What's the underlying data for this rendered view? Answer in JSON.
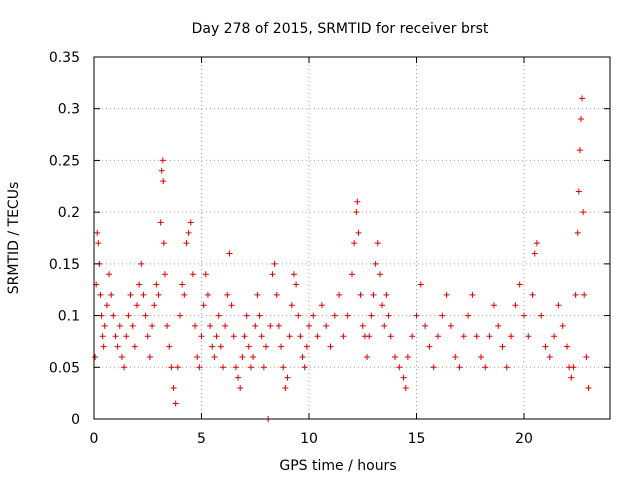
{
  "chart_data": {
    "type": "scatter",
    "title": "Day 278 of 2015, SRMTID for receiver brst",
    "xlabel": "GPS time / hours",
    "ylabel": "SRMTID / TECUs",
    "xlim": [
      0,
      24
    ],
    "ylim": [
      0,
      0.35
    ],
    "x_ticks": [
      0,
      5,
      10,
      15,
      20
    ],
    "x_tick_labels": [
      "0",
      "5",
      "10",
      "15",
      "20"
    ],
    "y_ticks": [
      0,
      0.05,
      0.1,
      0.15,
      0.2,
      0.25,
      0.3,
      0.35
    ],
    "y_tick_labels": [
      "0",
      "0.05",
      "0.1",
      "0.15",
      "0.2",
      "0.25",
      "0.3",
      "0.35"
    ],
    "grid": true,
    "series": [
      {
        "name": "SRMTID",
        "color": "#e00000",
        "marker": "plus",
        "points": [
          [
            0.05,
            0.06
          ],
          [
            0.1,
            0.13
          ],
          [
            0.15,
            0.18
          ],
          [
            0.2,
            0.17
          ],
          [
            0.25,
            0.15
          ],
          [
            0.3,
            0.12
          ],
          [
            0.35,
            0.1
          ],
          [
            0.4,
            0.08
          ],
          [
            0.45,
            0.07
          ],
          [
            0.5,
            0.09
          ],
          [
            0.6,
            0.11
          ],
          [
            0.7,
            0.14
          ],
          [
            0.8,
            0.12
          ],
          [
            0.9,
            0.1
          ],
          [
            1.0,
            0.08
          ],
          [
            1.1,
            0.07
          ],
          [
            1.2,
            0.09
          ],
          [
            1.3,
            0.06
          ],
          [
            1.4,
            0.05
          ],
          [
            1.5,
            0.08
          ],
          [
            1.6,
            0.1
          ],
          [
            1.7,
            0.12
          ],
          [
            1.8,
            0.09
          ],
          [
            1.9,
            0.07
          ],
          [
            2.0,
            0.11
          ],
          [
            2.1,
            0.13
          ],
          [
            2.2,
            0.15
          ],
          [
            2.3,
            0.12
          ],
          [
            2.4,
            0.1
          ],
          [
            2.5,
            0.08
          ],
          [
            2.6,
            0.06
          ],
          [
            2.7,
            0.09
          ],
          [
            2.8,
            0.11
          ],
          [
            2.9,
            0.13
          ],
          [
            3.0,
            0.12
          ],
          [
            3.1,
            0.19
          ],
          [
            3.15,
            0.24
          ],
          [
            3.2,
            0.25
          ],
          [
            3.22,
            0.23
          ],
          [
            3.25,
            0.17
          ],
          [
            3.3,
            0.14
          ],
          [
            3.4,
            0.09
          ],
          [
            3.5,
            0.07
          ],
          [
            3.6,
            0.05
          ],
          [
            3.7,
            0.03
          ],
          [
            3.8,
            0.015
          ],
          [
            3.9,
            0.05
          ],
          [
            4.0,
            0.1
          ],
          [
            4.1,
            0.13
          ],
          [
            4.2,
            0.12
          ],
          [
            4.3,
            0.17
          ],
          [
            4.4,
            0.18
          ],
          [
            4.5,
            0.19
          ],
          [
            4.6,
            0.14
          ],
          [
            4.7,
            0.09
          ],
          [
            4.8,
            0.06
          ],
          [
            4.9,
            0.05
          ],
          [
            5.0,
            0.08
          ],
          [
            5.1,
            0.11
          ],
          [
            5.2,
            0.14
          ],
          [
            5.3,
            0.12
          ],
          [
            5.4,
            0.09
          ],
          [
            5.5,
            0.07
          ],
          [
            5.6,
            0.06
          ],
          [
            5.7,
            0.08
          ],
          [
            5.8,
            0.1
          ],
          [
            5.9,
            0.07
          ],
          [
            6.0,
            0.05
          ],
          [
            6.1,
            0.09
          ],
          [
            6.2,
            0.12
          ],
          [
            6.3,
            0.16
          ],
          [
            6.4,
            0.11
          ],
          [
            6.5,
            0.08
          ],
          [
            6.6,
            0.05
          ],
          [
            6.7,
            0.04
          ],
          [
            6.8,
            0.03
          ],
          [
            6.9,
            0.06
          ],
          [
            7.0,
            0.08
          ],
          [
            7.1,
            0.1
          ],
          [
            7.2,
            0.07
          ],
          [
            7.3,
            0.05
          ],
          [
            7.4,
            0.06
          ],
          [
            7.5,
            0.09
          ],
          [
            7.6,
            0.12
          ],
          [
            7.7,
            0.1
          ],
          [
            7.8,
            0.08
          ],
          [
            7.9,
            0.05
          ],
          [
            8.0,
            0.07
          ],
          [
            8.2,
            0.09
          ],
          [
            8.3,
            0.14
          ],
          [
            8.4,
            0.15
          ],
          [
            8.5,
            0.12
          ],
          [
            8.6,
            0.09
          ],
          [
            8.7,
            0.07
          ],
          [
            8.8,
            0.05
          ],
          [
            8.9,
            0.03
          ],
          [
            9.0,
            0.04
          ],
          [
            9.1,
            0.08
          ],
          [
            9.2,
            0.11
          ],
          [
            9.3,
            0.14
          ],
          [
            9.4,
            0.13
          ],
          [
            9.5,
            0.1
          ],
          [
            9.6,
            0.08
          ],
          [
            9.7,
            0.06
          ],
          [
            9.8,
            0.05
          ],
          [
            9.9,
            0.07
          ],
          [
            10.0,
            0.09
          ],
          [
            10.2,
            0.1
          ],
          [
            10.4,
            0.08
          ],
          [
            10.6,
            0.11
          ],
          [
            10.8,
            0.09
          ],
          [
            11.0,
            0.07
          ],
          [
            11.2,
            0.1
          ],
          [
            11.4,
            0.12
          ],
          [
            11.6,
            0.08
          ],
          [
            11.8,
            0.1
          ],
          [
            12.0,
            0.14
          ],
          [
            12.1,
            0.17
          ],
          [
            12.2,
            0.2
          ],
          [
            12.25,
            0.21
          ],
          [
            12.3,
            0.18
          ],
          [
            12.4,
            0.12
          ],
          [
            12.5,
            0.09
          ],
          [
            12.6,
            0.08
          ],
          [
            12.7,
            0.06
          ],
          [
            12.8,
            0.08
          ],
          [
            12.9,
            0.1
          ],
          [
            13.0,
            0.12
          ],
          [
            13.1,
            0.15
          ],
          [
            13.2,
            0.17
          ],
          [
            13.3,
            0.14
          ],
          [
            13.4,
            0.11
          ],
          [
            13.5,
            0.09
          ],
          [
            13.6,
            0.12
          ],
          [
            13.7,
            0.1
          ],
          [
            13.8,
            0.08
          ],
          [
            14.0,
            0.06
          ],
          [
            14.2,
            0.05
          ],
          [
            14.4,
            0.04
          ],
          [
            14.5,
            0.03
          ],
          [
            14.6,
            0.06
          ],
          [
            14.8,
            0.08
          ],
          [
            15.0,
            0.1
          ],
          [
            15.2,
            0.13
          ],
          [
            15.4,
            0.09
          ],
          [
            15.6,
            0.07
          ],
          [
            15.8,
            0.05
          ],
          [
            16.0,
            0.08
          ],
          [
            16.2,
            0.1
          ],
          [
            16.4,
            0.12
          ],
          [
            16.6,
            0.09
          ],
          [
            16.8,
            0.06
          ],
          [
            17.0,
            0.05
          ],
          [
            17.2,
            0.08
          ],
          [
            17.4,
            0.1
          ],
          [
            17.6,
            0.12
          ],
          [
            17.8,
            0.08
          ],
          [
            18.0,
            0.06
          ],
          [
            18.2,
            0.05
          ],
          [
            18.4,
            0.08
          ],
          [
            18.6,
            0.11
          ],
          [
            18.8,
            0.09
          ],
          [
            19.0,
            0.07
          ],
          [
            19.2,
            0.05
          ],
          [
            19.4,
            0.08
          ],
          [
            19.6,
            0.11
          ],
          [
            19.8,
            0.13
          ],
          [
            20.0,
            0.1
          ],
          [
            20.2,
            0.08
          ],
          [
            20.4,
            0.12
          ],
          [
            20.5,
            0.16
          ],
          [
            20.6,
            0.17
          ],
          [
            20.8,
            0.1
          ],
          [
            21.0,
            0.07
          ],
          [
            21.2,
            0.06
          ],
          [
            21.4,
            0.08
          ],
          [
            21.6,
            0.11
          ],
          [
            21.8,
            0.09
          ],
          [
            22.0,
            0.07
          ],
          [
            22.1,
            0.05
          ],
          [
            22.2,
            0.04
          ],
          [
            22.3,
            0.05
          ],
          [
            22.4,
            0.12
          ],
          [
            22.5,
            0.18
          ],
          [
            22.55,
            0.22
          ],
          [
            22.6,
            0.26
          ],
          [
            22.65,
            0.29
          ],
          [
            22.7,
            0.31
          ],
          [
            22.75,
            0.2
          ],
          [
            22.8,
            0.12
          ],
          [
            22.9,
            0.06
          ],
          [
            23.0,
            0.03
          ],
          [
            8.1,
            0.0
          ]
        ]
      }
    ]
  }
}
